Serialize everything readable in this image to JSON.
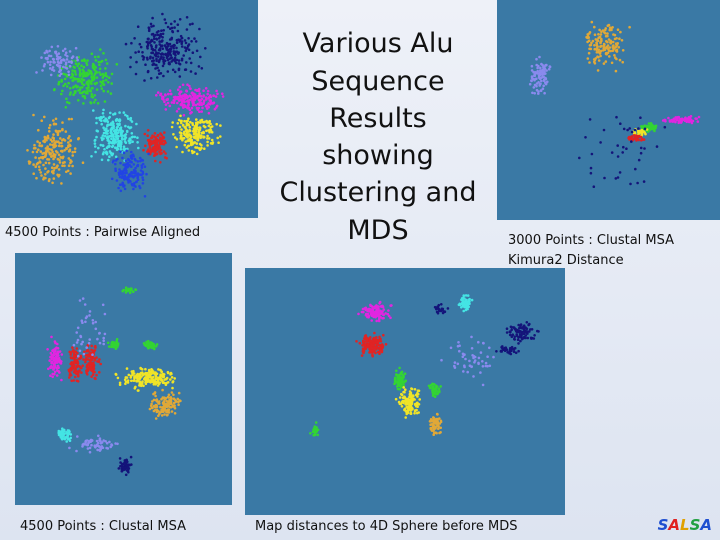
{
  "title_lines": [
    "Various Alu",
    "Sequence",
    "Results",
    "showing",
    "Clustering and",
    "MDS"
  ],
  "panels": [
    {
      "caption_lines": [
        "4500 Points : Pairwise Aligned"
      ]
    },
    {
      "caption_lines": [
        "3000 Points : Clustal MSA",
        "Kimura2 Distance"
      ]
    },
    {
      "caption_lines": [
        "4500 Points : Clustal MSA"
      ]
    },
    {
      "caption_lines": [
        "Map distances to 4D Sphere before MDS"
      ]
    }
  ],
  "logo": "SALSA"
}
